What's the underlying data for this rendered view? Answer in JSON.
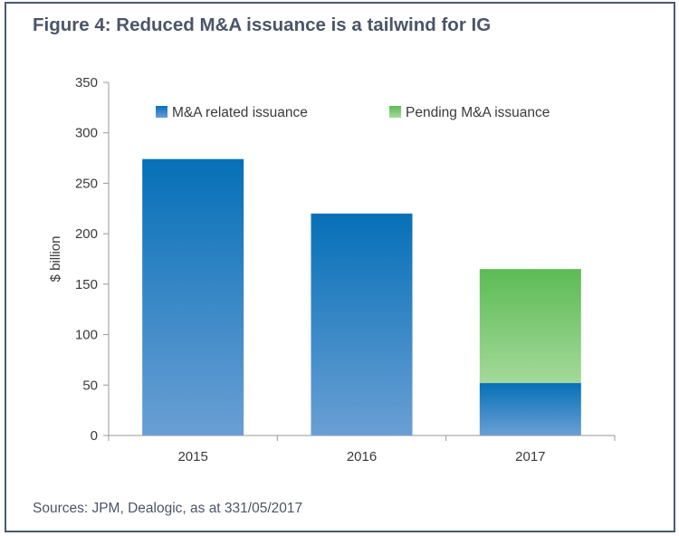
{
  "title": "Figure 4: Reduced M&A issuance is a tailwind for IG",
  "source": "Sources: JPM, Dealogic, as at 331/05/2017",
  "colors": {
    "border": "#4a5a6e",
    "title_text": "#4a5568",
    "blue_top": "#0670b8",
    "blue_bottom": "#6a9fd4",
    "green_top": "#5cbb55",
    "green_bottom": "#a4d99a"
  },
  "chart_data": {
    "type": "bar",
    "stacked": true,
    "categories": [
      "2015",
      "2016",
      "2017"
    ],
    "series": [
      {
        "name": "M&A related issuance",
        "values": [
          274,
          220,
          52
        ],
        "color": "blue"
      },
      {
        "name": "Pending M&A issuance",
        "values": [
          0,
          0,
          113
        ],
        "color": "green"
      }
    ],
    "ylabel": "$ billion",
    "xlabel": "",
    "ylim": [
      0,
      350
    ],
    "yticks": [
      0,
      50,
      100,
      150,
      200,
      250,
      300,
      350
    ],
    "legend_position": "top",
    "grid": false
  }
}
